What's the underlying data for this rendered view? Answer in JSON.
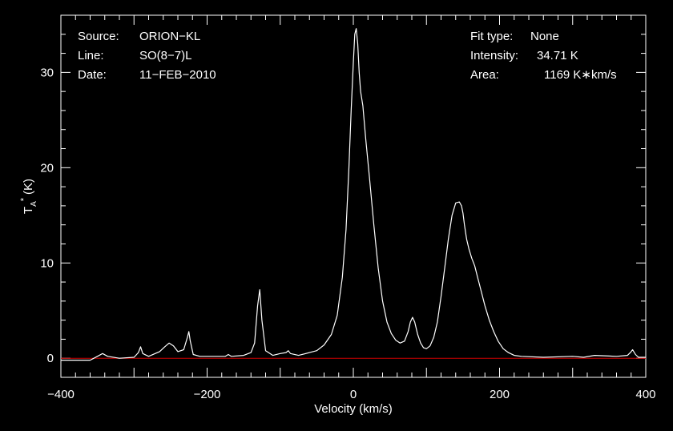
{
  "chart_data": {
    "type": "line",
    "xlabel": "Velocity (km/s)",
    "ylabel": "T",
    "ylabel_sub": "A",
    "ylabel_sup": "*",
    "ylabel_unit": "(K)",
    "xlim": [
      -400,
      400
    ],
    "ylim": [
      -2,
      36
    ],
    "xticks": [
      -400,
      -200,
      0,
      200,
      400
    ],
    "xtick_labels": [
      "−400",
      "−200",
      "0",
      "200",
      "400"
    ],
    "yticks": [
      0,
      10,
      20,
      30
    ],
    "ytick_labels": [
      "0",
      "10",
      "20",
      "30"
    ],
    "grid": false,
    "baseline": {
      "value": 0,
      "color": "#cc0000"
    },
    "series": [
      {
        "color": "#ffffff",
        "x": [
          -400,
          -360,
          -350,
          -343,
          -336,
          -320,
          -300,
          -294,
          -291,
          -288,
          -280,
          -265,
          -258,
          -252,
          -246,
          -240,
          -232,
          -227,
          -225,
          -223,
          -219,
          -210,
          -190,
          -175,
          -171,
          -167,
          -150,
          -140,
          -135,
          -131,
          -128,
          -125,
          -120,
          -110,
          -100,
          -92,
          -89,
          -86,
          -75,
          -60,
          -50,
          -40,
          -30,
          -22,
          -15,
          -10,
          -6,
          -3,
          0,
          2,
          4,
          6,
          8,
          10,
          13,
          17,
          22,
          28,
          34,
          40,
          46,
          52,
          58,
          64,
          70,
          75,
          78,
          81,
          84,
          88,
          92,
          96,
          100,
          105,
          110,
          115,
          120,
          125,
          130,
          135,
          140,
          145,
          148,
          150,
          152,
          155,
          158,
          162,
          166,
          170,
          175,
          180,
          186,
          192,
          198,
          205,
          212,
          220,
          230,
          260,
          300,
          315,
          330,
          360,
          375,
          379,
          382,
          386,
          390,
          400
        ],
        "y": [
          -0.2,
          -0.2,
          0.2,
          0.5,
          0.2,
          0.0,
          0.1,
          0.6,
          1.2,
          0.5,
          0.2,
          0.7,
          1.2,
          1.6,
          1.3,
          0.7,
          0.9,
          2.2,
          2.8,
          1.8,
          0.4,
          0.2,
          0.2,
          0.2,
          0.4,
          0.2,
          0.3,
          0.6,
          1.6,
          5.5,
          7.2,
          4.0,
          0.8,
          0.3,
          0.5,
          0.6,
          0.8,
          0.5,
          0.3,
          0.6,
          0.8,
          1.4,
          2.5,
          4.5,
          8.5,
          13.5,
          20.0,
          26.0,
          31.0,
          34.0,
          34.6,
          33.0,
          30.0,
          28.0,
          26.5,
          23.0,
          19.0,
          14.0,
          9.5,
          6.0,
          3.8,
          2.6,
          1.9,
          1.6,
          1.8,
          2.8,
          3.8,
          4.3,
          3.8,
          2.5,
          1.6,
          1.1,
          1.0,
          1.3,
          2.2,
          3.8,
          6.5,
          9.5,
          12.5,
          15.0,
          16.3,
          16.4,
          16.0,
          15.2,
          14.0,
          12.5,
          11.5,
          10.5,
          9.7,
          8.5,
          7.0,
          5.5,
          4.0,
          2.8,
          1.8,
          1.0,
          0.6,
          0.3,
          0.2,
          0.1,
          0.2,
          0.1,
          0.3,
          0.2,
          0.3,
          0.6,
          0.9,
          0.4,
          0.1,
          0.1
        ]
      }
    ],
    "annotations_left": [
      {
        "key": "Source:",
        "value": "ORION−KL"
      },
      {
        "key": "Line:",
        "value": "SO(8−7)L"
      },
      {
        "key": "Date:",
        "value": "11−FEB−2010"
      }
    ],
    "annotations_right": [
      {
        "key": "Fit type:",
        "value": "None"
      },
      {
        "key": "Intensity:",
        "value": "34.71 K"
      },
      {
        "key": "Area:",
        "value": "1169 K∗km/s"
      }
    ]
  }
}
